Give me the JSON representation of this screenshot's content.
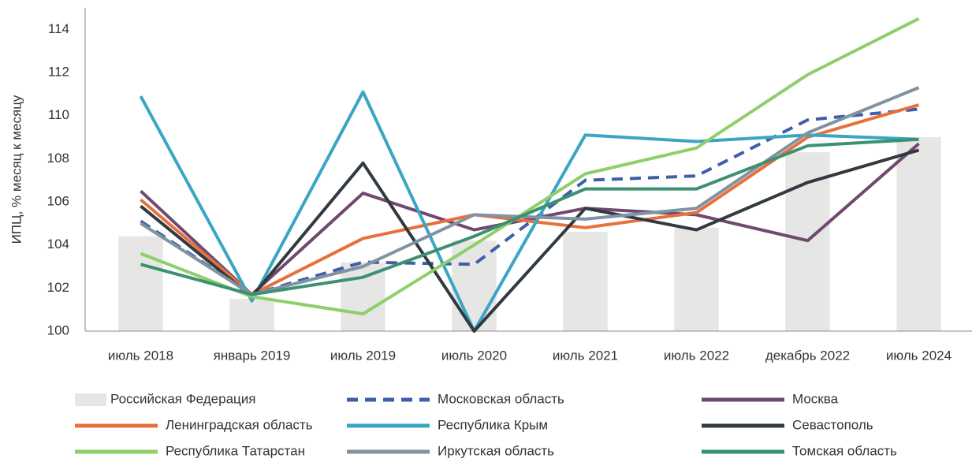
{
  "chart_data": {
    "type": "line",
    "y_label": "ИПЦ, % месяц к месяцу",
    "categories": [
      "июль 2018",
      "январь 2019",
      "июль 2019",
      "июль 2020",
      "июль 2021",
      "июль 2022",
      "декабрь 2022",
      "июль 2024"
    ],
    "ylim": [
      100,
      115
    ],
    "yticks": [
      100,
      102,
      104,
      106,
      108,
      110,
      112,
      114
    ],
    "series": [
      {
        "name": "Российская Федерация",
        "type": "bar",
        "color": "#e6e6e4",
        "values": [
          104.4,
          101.5,
          103.2,
          104.2,
          104.6,
          104.8,
          108.3,
          109.0
        ]
      },
      {
        "name": "Московская область",
        "color": "#3f5fa8",
        "dashed": true,
        "values": [
          105.1,
          101.7,
          103.2,
          103.1,
          107.0,
          107.2,
          109.8,
          110.3
        ]
      },
      {
        "name": "Москва",
        "color": "#6f4a6e",
        "values": [
          106.5,
          101.7,
          106.4,
          104.7,
          105.7,
          105.4,
          104.2,
          108.7
        ]
      },
      {
        "name": "Ленинградская область",
        "color": "#e8703d",
        "values": [
          106.1,
          101.7,
          104.3,
          105.4,
          104.8,
          105.5,
          109.0,
          110.5
        ]
      },
      {
        "name": "Республика Крым",
        "color": "#3aa5c4",
        "values": [
          110.9,
          101.4,
          111.1,
          100.0,
          109.1,
          108.8,
          109.1,
          108.9
        ]
      },
      {
        "name": "Севастополь",
        "color": "#313a40",
        "values": [
          105.8,
          101.6,
          107.8,
          100.0,
          105.7,
          104.7,
          106.9,
          108.4
        ]
      },
      {
        "name": "Республика Татарстан",
        "color": "#8ecf6a",
        "values": [
          103.6,
          101.6,
          100.8,
          104.0,
          107.3,
          108.5,
          111.9,
          114.5
        ]
      },
      {
        "name": "Иркутская область",
        "color": "#7f93a2",
        "values": [
          105.0,
          101.7,
          103.0,
          105.4,
          105.2,
          105.7,
          109.2,
          111.3
        ]
      },
      {
        "name": "Томская область",
        "color": "#3b9171",
        "values": [
          103.1,
          101.7,
          102.5,
          104.4,
          106.6,
          106.6,
          108.6,
          108.9
        ]
      }
    ]
  }
}
